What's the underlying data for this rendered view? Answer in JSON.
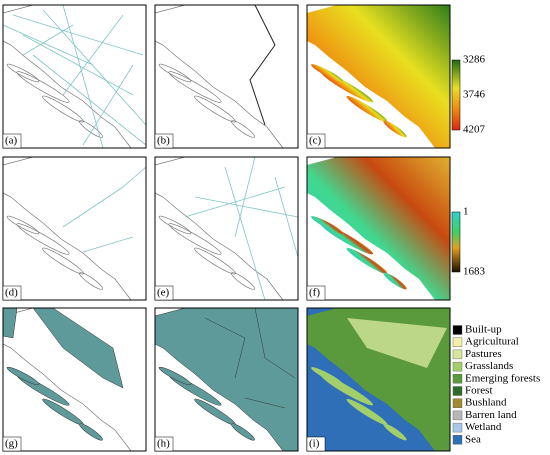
{
  "panels": {
    "labels": [
      "(a)",
      "(b)",
      "(c)",
      "(d)",
      "(e)",
      "(f)",
      "(g)",
      "(h)",
      "(i)"
    ]
  },
  "colorbar_c": {
    "labels": [
      3286,
      3746,
      4207
    ]
  },
  "colorbar_f": {
    "labels": [
      1,
      1683
    ]
  },
  "legend": {
    "items": [
      {
        "name": "Built-up",
        "color": "#000000"
      },
      {
        "name": "Agricultural",
        "color": "#f2f0a8"
      },
      {
        "name": "Pastures",
        "color": "#d6e69c"
      },
      {
        "name": "Grasslands",
        "color": "#a3cf6a"
      },
      {
        "name": "Emerging forests",
        "color": "#5a9a3c"
      },
      {
        "name": "Forest",
        "color": "#2e6b2a"
      },
      {
        "name": "Bushland",
        "color": "#a08a2c"
      },
      {
        "name": "Barren land",
        "color": "#b8b8b8"
      },
      {
        "name": "Wetland",
        "color": "#a9c8e8"
      },
      {
        "name": "Sea",
        "color": "#2f6fb8"
      }
    ]
  }
}
